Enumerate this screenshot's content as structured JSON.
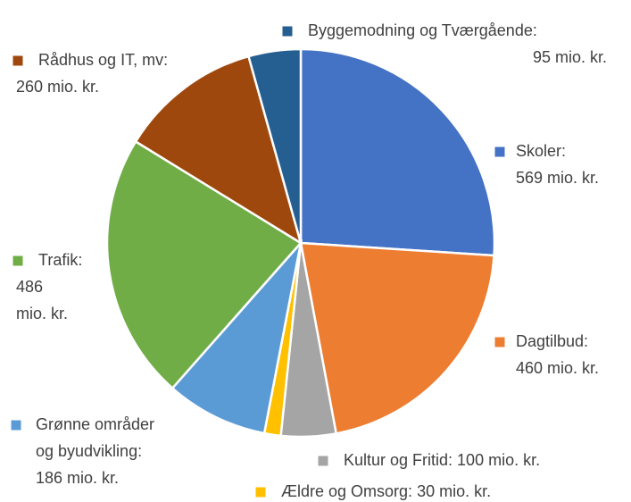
{
  "chart_data": {
    "type": "pie",
    "categories": [
      "Skoler:",
      "Dagtilbud:",
      "Kultur og Fritid:",
      "Ældre og Omsorg:",
      "Grønne områder og byudvikling:",
      "Trafik:",
      "Rådhus og IT, mv:",
      "Byggemodning og Tværgående:"
    ],
    "values": [
      569,
      460,
      100,
      30,
      186,
      486,
      260,
      95
    ],
    "value_labels": [
      "569 mio. kr.",
      "460 mio. kr.",
      "100 mio. kr.",
      "30 mio. kr.",
      "186 mio. kr.",
      "486 mio. kr.",
      "260 mio. kr.",
      "95 mio. kr."
    ],
    "colors": [
      "#4472c4",
      "#ed7d31",
      "#a5a5a5",
      "#ffc000",
      "#5b9bd5",
      "#70ad47",
      "#9e480e",
      "#255e91"
    ]
  }
}
